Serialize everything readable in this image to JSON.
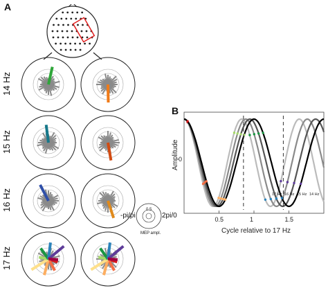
{
  "panel_a": {
    "label": "A",
    "rows": [
      {
        "label": "14 Hz",
        "accent_colors": [
          "#2fa63a",
          "#f07b18"
        ]
      },
      {
        "label": "15 Hz",
        "accent_colors": [
          "#17788a",
          "#d24b12"
        ]
      },
      {
        "label": "16 Hz",
        "accent_colors": [
          "#2f4fa8",
          "#e08a1c"
        ]
      },
      {
        "label": "17 Hz",
        "accent_colors": [
          "rainbow",
          "rainbow"
        ]
      }
    ],
    "legend": {
      "left": "-pi/pi",
      "right": "2pi/0",
      "radius_tick": "0.5",
      "axis_label": "MEP ampl."
    }
  },
  "panel_b": {
    "label": "B",
    "ylabel": "Amplitude",
    "xlabel": "Cycle relative to 17 Hz",
    "ytick": "0",
    "xticks": [
      "0.5",
      "1",
      "1.5"
    ],
    "freq_labels": [
      "17 Hz",
      "16 Hz",
      "15 Hz",
      "14 Hz"
    ]
  },
  "chart_data": {
    "type": "line",
    "title": "",
    "xlabel": "Cycle relative to 17 Hz",
    "ylabel": "Amplitude",
    "xlim": [
      0,
      2
    ],
    "x_ticks": [
      0.5,
      1,
      1.5
    ],
    "y_ticks": [
      0
    ],
    "vlines": [
      0.85,
      1.42
    ],
    "series": [
      {
        "name": "17 Hz",
        "color": "#000000",
        "period": 1.0
      },
      {
        "name": "16 Hz",
        "color": "#555555",
        "period": 0.941
      },
      {
        "name": "15 Hz",
        "color": "#8a8a8a",
        "period": 0.882
      },
      {
        "name": "14 Hz",
        "color": "#bbbbbb",
        "period": 0.824
      }
    ]
  }
}
